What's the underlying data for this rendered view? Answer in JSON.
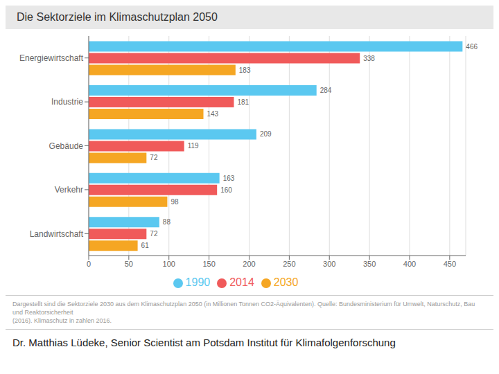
{
  "chart_data": {
    "type": "bar",
    "orientation": "horizontal",
    "title": "Die Sektorziele im Klimaschutzplan 2050",
    "categories": [
      "Energiewirtschaft",
      "Industrie",
      "Gebäude",
      "Verkehr",
      "Landwirtschaft"
    ],
    "series": [
      {
        "name": "1990",
        "color": "#5bc8f0",
        "values": [
          466,
          284,
          209,
          163,
          88
        ]
      },
      {
        "name": "2014",
        "color": "#f05a5a",
        "values": [
          338,
          181,
          119,
          160,
          72
        ]
      },
      {
        "name": "2030",
        "color": "#f5a623",
        "values": [
          183,
          143,
          72,
          98,
          61
        ]
      }
    ],
    "xlim": [
      0,
      470
    ],
    "xticks": [
      0,
      50,
      100,
      150,
      200,
      250,
      300,
      350,
      400,
      450
    ],
    "grid": true,
    "legend": "bottom",
    "data_labels": true,
    "annotations": [
      "Dargestellt sind die Sektorziele 2030 aus dem Klimaschutzplan 2050 (in Millionen Tonnen CO2-Äquivalenten). Quelle: Bundesministerium für Umwelt, Naturschutz, Bau und Reaktorsicherheit\n(2016). Klimaschutz in zahlen 2016.",
      "Dr. Matthias Lüdeke, Senior Scientist am Potsdam Institut für Klimafolgenforschung"
    ]
  }
}
